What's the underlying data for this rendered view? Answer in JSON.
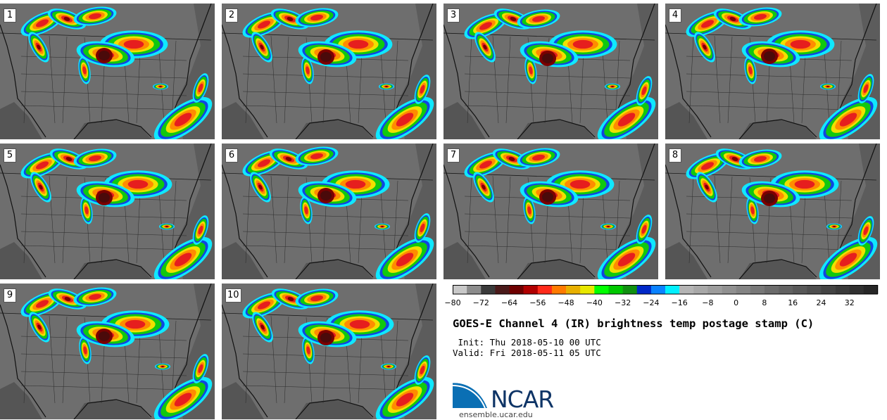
{
  "panels": [
    {
      "label": "1"
    },
    {
      "label": "2"
    },
    {
      "label": "3"
    },
    {
      "label": "4"
    },
    {
      "label": "5"
    },
    {
      "label": "6"
    },
    {
      "label": "7"
    },
    {
      "label": "8"
    },
    {
      "label": "9"
    },
    {
      "label": "10"
    }
  ],
  "colorbar": {
    "ticks": [
      "−80",
      "−72",
      "−64",
      "−56",
      "−48",
      "−40",
      "−32",
      "−24",
      "−16",
      "−8",
      "0",
      "8",
      "16",
      "24",
      "32"
    ],
    "colors": [
      "#c8c8c8",
      "#8c8c8c",
      "#3a3a3a",
      "#4a1a1a",
      "#6e0000",
      "#b00000",
      "#ff2a1a",
      "#ff7a00",
      "#e8b000",
      "#e8e800",
      "#00ff00",
      "#00c800",
      "#109010",
      "#0028c8",
      "#0a82ff",
      "#00f0ff",
      "#b4b4b4",
      "#a8a8a8",
      "#9c9c9c",
      "#909090",
      "#848484",
      "#787878",
      "#6c6c6c",
      "#626262",
      "#585858",
      "#4e4e4e",
      "#444444",
      "#3a3a3a",
      "#303030",
      "#262626"
    ]
  },
  "title": "GOES-E Channel 4 (IR) brightness temp postage stamp (C)",
  "init_line": " Init: Thu 2018-05-10 00 UTC",
  "valid_line": "Valid: Fri 2018-05-11 05 UTC",
  "logo": {
    "wordmark": "NCAR",
    "url": "ensemble.ucar.edu",
    "colors": {
      "blue": "#0a6fb4",
      "navy": "#0e3466"
    }
  },
  "map_colors": {
    "land": "#6e6e6e",
    "ocean": "#555555",
    "cold_top": "#7a0000",
    "red": "#e61e1e",
    "orange": "#ff8c00",
    "yellow": "#f0e000",
    "green": "#10c810",
    "blue": "#1046e0",
    "cyan": "#10e8ff"
  }
}
